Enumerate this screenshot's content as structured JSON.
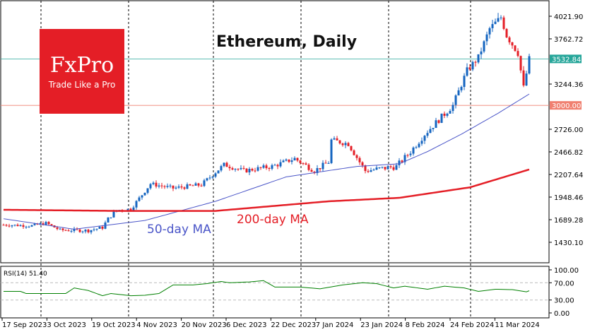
{
  "chart_data": {
    "type": "candlestick",
    "title": "Ethereum, Daily",
    "logo": {
      "brand": "FxPro",
      "tagline": "Trade Like a Pro"
    },
    "y_ticks": [
      "4021.90",
      "3762.72",
      "3244.36",
      "2726.00",
      "2466.82",
      "2207.64",
      "1948.46",
      "1689.28",
      "1430.10"
    ],
    "ylim": [
      1430.1,
      4021.9
    ],
    "x_ticks": [
      "17 Sep 2023",
      "3 Oct 2023",
      "19 Oct 2023",
      "4 Nov 2023",
      "20 Nov 2023",
      "6 Dec 2023",
      "22 Dec 2023",
      "7 Jan 2024",
      "23 Jan 2024",
      "8 Feb 2024",
      "24 Feb 2024",
      "11 Mar 2024"
    ],
    "current_price": {
      "label": "3532.84",
      "value": 3532.84,
      "color": "#26a69a"
    },
    "level": {
      "label": "3000.00",
      "value": 3000,
      "color": "#f08070"
    },
    "close_path": [
      [
        0,
        1630
      ],
      [
        10,
        1620
      ],
      [
        15,
        1650
      ],
      [
        20,
        1570
      ],
      [
        30,
        1565
      ],
      [
        35,
        1600
      ],
      [
        37,
        1700
      ],
      [
        40,
        1800
      ],
      [
        45,
        1810
      ],
      [
        52,
        2100
      ],
      [
        60,
        2050
      ],
      [
        70,
        2090
      ],
      [
        78,
        2320
      ],
      [
        85,
        2250
      ],
      [
        95,
        2300
      ],
      [
        103,
        2390
      ],
      [
        110,
        2250
      ],
      [
        115,
        2350
      ],
      [
        116,
        2600
      ],
      [
        122,
        2560
      ],
      [
        126,
        2350
      ],
      [
        128,
        2250
      ],
      [
        139,
        2300
      ],
      [
        144,
        2470
      ],
      [
        149,
        2670
      ],
      [
        159,
        3000
      ],
      [
        164,
        3400
      ],
      [
        168,
        3550
      ],
      [
        172,
        3880
      ],
      [
        176,
        4010
      ],
      [
        178,
        3800
      ],
      [
        182,
        3600
      ],
      [
        184,
        3200
      ],
      [
        186,
        3530
      ]
    ],
    "ma50": {
      "label": "50-day MA",
      "color": "#4a55c8",
      "points": [
        [
          0,
          1700
        ],
        [
          25,
          1580
        ],
        [
          50,
          1680
        ],
        [
          75,
          1900
        ],
        [
          100,
          2180
        ],
        [
          125,
          2300
        ],
        [
          140,
          2330
        ],
        [
          150,
          2470
        ],
        [
          162,
          2670
        ],
        [
          175,
          2910
        ],
        [
          186,
          3130
        ]
      ]
    },
    "ma200": {
      "label": "200-day MA",
      "color": "#e41e26",
      "points": [
        [
          0,
          1803
        ],
        [
          40,
          1790
        ],
        [
          75,
          1790
        ],
        [
          115,
          1900
        ],
        [
          140,
          1940
        ],
        [
          165,
          2060
        ],
        [
          186,
          2265
        ]
      ]
    },
    "rsi": {
      "label": "RSI(14) 51.40",
      "ticks": [
        "100.00",
        "70.00",
        "30.00",
        "0.00"
      ],
      "color": "#008000",
      "points": [
        [
          0,
          50
        ],
        [
          6,
          50
        ],
        [
          8,
          45
        ],
        [
          15,
          45
        ],
        [
          22,
          45
        ],
        [
          25,
          58
        ],
        [
          30,
          52
        ],
        [
          35,
          40
        ],
        [
          38,
          45
        ],
        [
          45,
          40
        ],
        [
          50,
          41
        ],
        [
          55,
          45
        ],
        [
          60,
          65
        ],
        [
          67,
          65
        ],
        [
          72,
          68
        ],
        [
          77,
          73
        ],
        [
          80,
          70
        ],
        [
          87,
          72
        ],
        [
          92,
          75
        ],
        [
          96,
          60
        ],
        [
          105,
          60
        ],
        [
          112,
          56
        ],
        [
          120,
          65
        ],
        [
          127,
          70
        ],
        [
          132,
          68
        ],
        [
          138,
          58
        ],
        [
          142,
          62
        ],
        [
          150,
          55
        ],
        [
          156,
          62
        ],
        [
          163,
          58
        ],
        [
          168,
          50
        ],
        [
          174,
          55
        ],
        [
          180,
          54
        ],
        [
          185,
          49
        ],
        [
          186,
          51.4
        ]
      ]
    }
  }
}
